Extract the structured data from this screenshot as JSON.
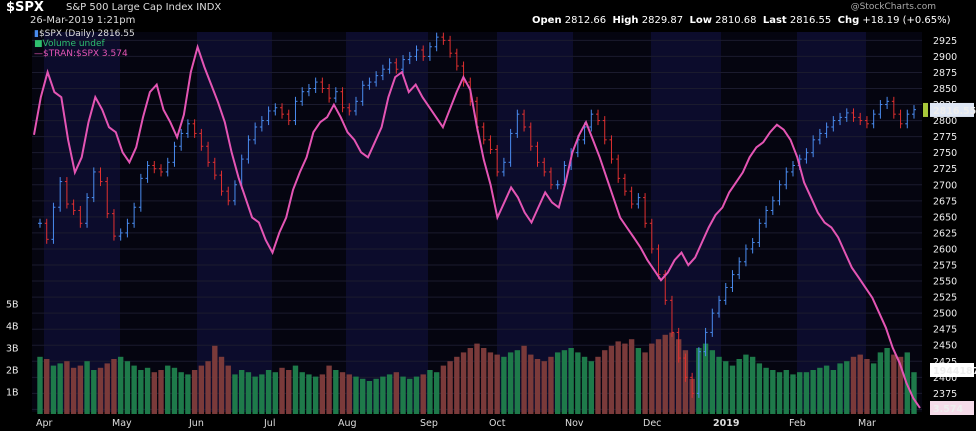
{
  "header": {
    "symbol": "$SPX",
    "name": "S&P 500 Large Cap Index",
    "exchange": "INDX",
    "datetime": "26-Mar-2019 1:21pm",
    "watermark": "@StockCharts.com",
    "open_label": "Open",
    "open": "2812.66",
    "high_label": "High",
    "high": "2829.87",
    "low_label": "Low",
    "low": "2810.68",
    "last_label": "Last",
    "last": "2816.55",
    "chg_label": "Chg",
    "chg": "+18.19 (+0.65%)"
  },
  "legend": {
    "price": "$SPX (Daily) 2816.55",
    "volume": "Volume undef",
    "ratio": "$TRAN:$SPX 3.574"
  },
  "colors": {
    "up": "#4a8cf0",
    "down": "#e03030",
    "ratio": "#e455b4",
    "vol_up": "#1e7a4a",
    "vol_down": "#7a3a3a",
    "band": "#0c0c2c"
  },
  "chart_data": {
    "type": "line",
    "y_ticks": [
      "2925",
      "2900",
      "2875",
      "2850",
      "2825",
      "2800",
      "2775",
      "2750",
      "2725",
      "2700",
      "2675",
      "2650",
      "2625",
      "2600",
      "2575",
      "2550",
      "2525",
      "2500",
      "2475",
      "2450",
      "2425",
      "2400",
      "2375",
      "2350"
    ],
    "ylim": [
      2346,
      2938
    ],
    "vol_ticks": [
      "5B",
      "4B",
      "3B",
      "2B",
      "1B"
    ],
    "x_ticks": [
      "Apr",
      "May",
      "Jun",
      "Jul",
      "Aug",
      "Sep",
      "Oct",
      "Nov",
      "Dec",
      "2019",
      "Feb",
      "Mar"
    ],
    "last_price_label": "2816.55",
    "last_volume_label": "1944187",
    "last_ratio_label": "3.574",
    "price_close": [
      2640,
      2615,
      2665,
      2705,
      2670,
      2660,
      2640,
      2680,
      2720,
      2705,
      2655,
      2620,
      2625,
      2640,
      2665,
      2710,
      2730,
      2725,
      2720,
      2735,
      2760,
      2780,
      2795,
      2780,
      2760,
      2735,
      2715,
      2690,
      2675,
      2700,
      2740,
      2770,
      2790,
      2800,
      2815,
      2820,
      2810,
      2800,
      2830,
      2845,
      2850,
      2860,
      2850,
      2835,
      2845,
      2820,
      2815,
      2830,
      2855,
      2860,
      2870,
      2880,
      2890,
      2880,
      2895,
      2900,
      2910,
      2900,
      2915,
      2930,
      2925,
      2905,
      2885,
      2860,
      2830,
      2790,
      2770,
      2755,
      2720,
      2735,
      2780,
      2810,
      2790,
      2760,
      2735,
      2720,
      2700,
      2700,
      2730,
      2750,
      2770,
      2790,
      2810,
      2800,
      2770,
      2740,
      2710,
      2690,
      2670,
      2680,
      2640,
      2600,
      2560,
      2520,
      2470,
      2430,
      2400,
      2375,
      2440,
      2470,
      2500,
      2520,
      2540,
      2560,
      2580,
      2600,
      2610,
      2640,
      2660,
      2675,
      2700,
      2720,
      2730,
      2740,
      2750,
      2770,
      2780,
      2790,
      2800,
      2805,
      2812,
      2805,
      2800,
      2795,
      2810,
      2825,
      2830,
      2810,
      2795,
      2810,
      2817
    ],
    "ratio_series": [
      3.95,
      4.1,
      4.2,
      4.12,
      4.1,
      3.93,
      3.8,
      3.86,
      4.0,
      4.1,
      4.05,
      3.98,
      3.96,
      3.88,
      3.84,
      3.9,
      4.02,
      4.12,
      4.15,
      4.05,
      4.0,
      3.94,
      4.03,
      4.2,
      4.3,
      4.22,
      4.15,
      4.08,
      4.0,
      3.88,
      3.78,
      3.7,
      3.62,
      3.6,
      3.53,
      3.48,
      3.56,
      3.62,
      3.73,
      3.8,
      3.86,
      3.96,
      4.0,
      4.02,
      4.07,
      4.02,
      3.96,
      3.93,
      3.88,
      3.86,
      3.92,
      3.98,
      4.1,
      4.18,
      4.2,
      4.12,
      4.15,
      4.1,
      4.06,
      4.02,
      3.98,
      4.05,
      4.12,
      4.18,
      4.13,
      3.98,
      3.85,
      3.75,
      3.62,
      3.68,
      3.74,
      3.7,
      3.64,
      3.6,
      3.66,
      3.72,
      3.68,
      3.66,
      3.76,
      3.88,
      3.95,
      4.0,
      3.93,
      3.86,
      3.78,
      3.7,
      3.62,
      3.58,
      3.54,
      3.5,
      3.45,
      3.41,
      3.37,
      3.4,
      3.45,
      3.48,
      3.43,
      3.46,
      3.52,
      3.58,
      3.63,
      3.66,
      3.72,
      3.76,
      3.8,
      3.86,
      3.9,
      3.92,
      3.96,
      3.99,
      3.97,
      3.93,
      3.86,
      3.76,
      3.7,
      3.64,
      3.6,
      3.58,
      3.54,
      3.48,
      3.42,
      3.38,
      3.34,
      3.3,
      3.24,
      3.18,
      3.1,
      3.04,
      2.96,
      2.9,
      2.86
    ],
    "volume_b": [
      2.6,
      2.5,
      2.2,
      2.3,
      2.4,
      2.1,
      2.2,
      2.4,
      2.0,
      2.1,
      2.3,
      2.5,
      2.6,
      2.4,
      2.2,
      2.0,
      2.1,
      1.9,
      2.0,
      2.2,
      2.1,
      1.9,
      1.8,
      2.0,
      2.2,
      2.4,
      3.1,
      2.6,
      2.2,
      1.8,
      2.0,
      1.9,
      1.7,
      1.8,
      2.0,
      1.9,
      2.1,
      2.0,
      2.2,
      1.9,
      1.8,
      1.7,
      1.8,
      2.2,
      2.0,
      1.9,
      1.8,
      1.7,
      1.6,
      1.5,
      1.6,
      1.7,
      1.8,
      1.9,
      1.7,
      1.6,
      1.7,
      1.8,
      2.0,
      1.9,
      2.2,
      2.4,
      2.6,
      2.8,
      3.0,
      3.2,
      3.0,
      2.8,
      2.7,
      2.6,
      2.8,
      2.9,
      3.1,
      2.7,
      2.5,
      2.4,
      2.6,
      2.8,
      2.9,
      3.0,
      2.8,
      2.6,
      2.4,
      2.6,
      2.9,
      3.1,
      3.3,
      3.2,
      3.4,
      3.0,
      2.8,
      3.2,
      3.4,
      3.6,
      3.7,
      3.4,
      2.9,
      1.6,
      3.0,
      3.2,
      2.9,
      2.6,
      2.4,
      2.2,
      2.5,
      2.7,
      2.6,
      2.3,
      2.1,
      2.0,
      1.9,
      2.0,
      1.8,
      1.9,
      1.9,
      2.0,
      2.1,
      2.2,
      2.0,
      2.3,
      2.4,
      2.6,
      2.7,
      2.5,
      2.3,
      2.8,
      3.0,
      2.7,
      2.6,
      2.8,
      1.9
    ]
  }
}
